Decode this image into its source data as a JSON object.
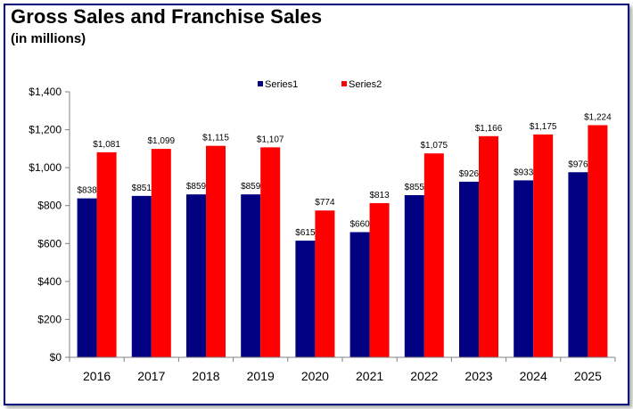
{
  "header": {
    "title": "Gross Sales and Franchise Sales",
    "subtitle": "(in millions)"
  },
  "colors": {
    "frame": "#00007a",
    "series1": "#000080",
    "series2": "#ff0000",
    "axis": "#808080"
  },
  "chart_data": {
    "type": "bar",
    "title": "Gross Sales and Franchise Sales",
    "subtitle": "(in millions)",
    "xlabel": "",
    "ylabel": "",
    "categories": [
      "2016",
      "2017",
      "2018",
      "2019",
      "2020",
      "2021",
      "2022",
      "2023",
      "2024",
      "2025"
    ],
    "series": [
      {
        "name": "Series1",
        "color": "#000080",
        "values": [
          838,
          851,
          859,
          859,
          615,
          660,
          855,
          926,
          933,
          976
        ],
        "labels": [
          "$838",
          "$851",
          "$859",
          "$859",
          "$615",
          "$660",
          "$855",
          "$926",
          "$933",
          "$976"
        ]
      },
      {
        "name": "Series2",
        "color": "#ff0000",
        "values": [
          1081,
          1099,
          1115,
          1107,
          774,
          813,
          1075,
          1166,
          1175,
          1224
        ],
        "labels": [
          "$1,081",
          "$1,099",
          "$1,115",
          "$1,107",
          "$774",
          "$813",
          "$1,075",
          "$1,166",
          "$1,175",
          "$1,224"
        ]
      }
    ],
    "ylim": [
      0,
      1400
    ],
    "yticks": [
      0,
      200,
      400,
      600,
      800,
      1000,
      1200,
      1400
    ],
    "ytick_labels": [
      "$0",
      "$200",
      "$400",
      "$600",
      "$800",
      "$1,000",
      "$1,200",
      "$1,400"
    ],
    "grid": false,
    "legend": "top-center"
  }
}
